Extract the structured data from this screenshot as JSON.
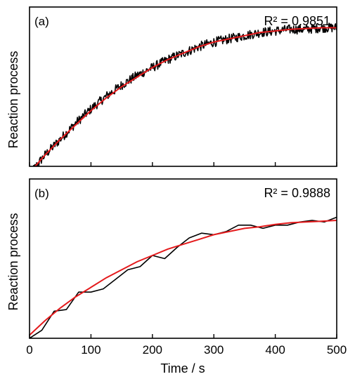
{
  "chart_data": [
    {
      "type": "line",
      "panel_label": "(a)",
      "annotation": "R² = 0.9851",
      "xlabel": "",
      "ylabel": "Reaction process",
      "xlim": [
        0,
        500
      ],
      "ylim": [
        0,
        1
      ],
      "x_ticks": [
        0,
        100,
        200,
        300,
        400,
        500
      ],
      "x_tick_labels_shown": false,
      "y_ticks_shown": false,
      "series": [
        {
          "role": "data",
          "color": "#000000",
          "sampling": "dense_noisy",
          "x": [
            0,
            25,
            50,
            75,
            100,
            125,
            150,
            175,
            200,
            225,
            250,
            275,
            300,
            325,
            350,
            375,
            400,
            425,
            450,
            475,
            500
          ],
          "y": [
            -0.05,
            0.07,
            0.17,
            0.27,
            0.36,
            0.44,
            0.51,
            0.57,
            0.62,
            0.67,
            0.71,
            0.75,
            0.78,
            0.8,
            0.82,
            0.84,
            0.85,
            0.86,
            0.86,
            0.87,
            0.87
          ]
        },
        {
          "role": "fit",
          "color": "#e41a1c",
          "x": [
            0,
            25,
            50,
            75,
            100,
            125,
            150,
            175,
            200,
            225,
            250,
            275,
            300,
            325,
            350,
            375,
            400,
            425,
            450,
            475,
            500
          ],
          "y": [
            -0.04,
            0.07,
            0.17,
            0.26,
            0.35,
            0.43,
            0.5,
            0.56,
            0.62,
            0.67,
            0.71,
            0.75,
            0.78,
            0.8,
            0.82,
            0.84,
            0.85,
            0.86,
            0.865,
            0.87,
            0.87
          ]
        }
      ]
    },
    {
      "type": "line",
      "panel_label": "(b)",
      "annotation": "R² = 0.9888",
      "xlabel": "Time / s",
      "ylabel": "Reaction process",
      "xlim": [
        0,
        500
      ],
      "ylim": [
        0,
        1
      ],
      "x_ticks": [
        0,
        100,
        200,
        300,
        400,
        500
      ],
      "x_tick_labels": [
        "0",
        "100",
        "200",
        "300",
        "400",
        "500"
      ],
      "y_ticks_shown": false,
      "series": [
        {
          "role": "data",
          "color": "#000000",
          "x": [
            0,
            20,
            40,
            60,
            80,
            100,
            120,
            140,
            160,
            180,
            200,
            220,
            240,
            260,
            280,
            300,
            320,
            340,
            360,
            380,
            400,
            420,
            440,
            460,
            480,
            500
          ],
          "y": [
            0.0,
            0.05,
            0.17,
            0.18,
            0.29,
            0.29,
            0.31,
            0.37,
            0.43,
            0.45,
            0.52,
            0.5,
            0.57,
            0.63,
            0.66,
            0.65,
            0.67,
            0.71,
            0.71,
            0.69,
            0.71,
            0.71,
            0.73,
            0.74,
            0.73,
            0.76
          ]
        },
        {
          "role": "fit",
          "color": "#e41a1c",
          "x": [
            0,
            25,
            50,
            75,
            100,
            125,
            150,
            175,
            200,
            225,
            250,
            275,
            300,
            325,
            350,
            375,
            400,
            425,
            450,
            475,
            500
          ],
          "y": [
            0.02,
            0.11,
            0.19,
            0.26,
            0.32,
            0.38,
            0.43,
            0.48,
            0.52,
            0.56,
            0.59,
            0.62,
            0.65,
            0.67,
            0.69,
            0.7,
            0.715,
            0.725,
            0.73,
            0.735,
            0.74
          ]
        }
      ]
    }
  ]
}
